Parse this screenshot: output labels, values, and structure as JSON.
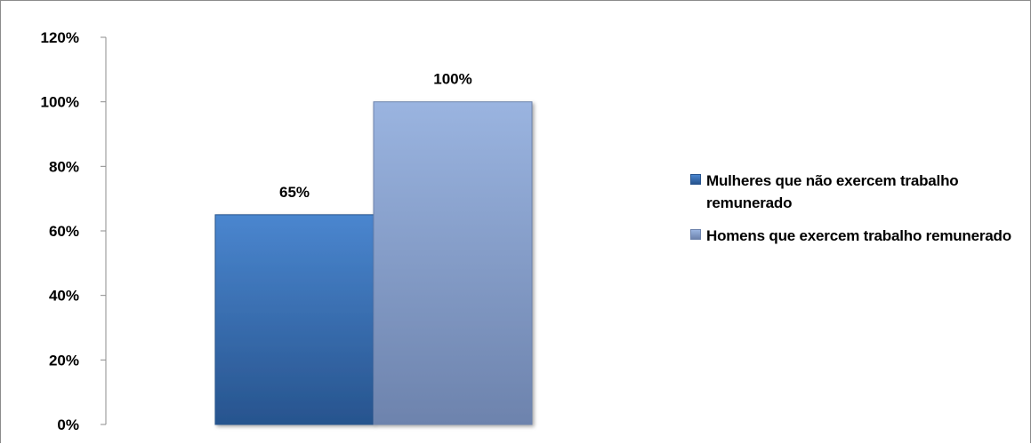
{
  "chart_data": {
    "type": "bar",
    "title": "",
    "xlabel": "",
    "ylabel": "",
    "ylim": [
      0,
      1.2
    ],
    "y_ticks": [
      "0%",
      "20%",
      "40%",
      "60%",
      "80%",
      "100%",
      "120%"
    ],
    "y_tick_values": [
      0,
      0.2,
      0.4,
      0.6,
      0.8,
      1.0,
      1.2
    ],
    "grid": false,
    "legend_position": "right",
    "series": [
      {
        "name": "Mulheres que não exercem trabalho remunerado",
        "value": 0.65,
        "label": "65%",
        "color": "#3a6fb5",
        "color_dark": "#27548e",
        "color_light": "#4a86cf"
      },
      {
        "name": "Homens que exercem trabalho remunerado",
        "value": 1.0,
        "label": "100%",
        "color": "#8aa5d3",
        "color_dark": "#6d83ad",
        "color_light": "#9ab4e0"
      }
    ]
  }
}
